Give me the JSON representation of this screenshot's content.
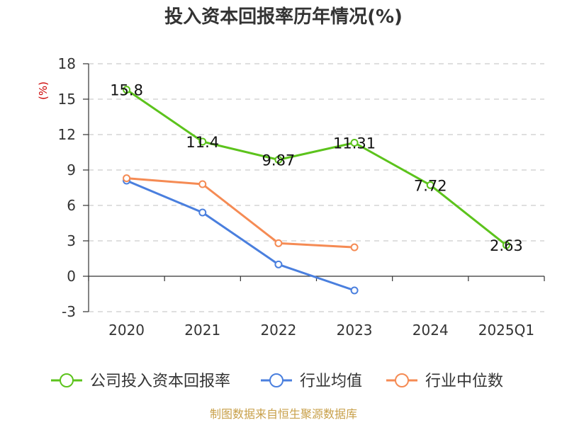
{
  "chart_data": {
    "type": "line",
    "title": "投入资本回报率历年情况(%)",
    "ylabel": "(%)",
    "xlabel": "",
    "categories": [
      "2020",
      "2021",
      "2022",
      "2023",
      "2024",
      "2025Q1"
    ],
    "yticks": [
      18,
      15,
      12,
      9,
      6,
      3,
      0,
      -3
    ],
    "ylim": [
      -3,
      18
    ],
    "grid": true,
    "legend_position": "bottom",
    "series": [
      {
        "name": "公司投入资本回报率",
        "color": "#5cc31c",
        "values": [
          15.8,
          11.4,
          9.87,
          11.31,
          7.72,
          2.63
        ],
        "labels": [
          "15.8",
          "11.4",
          "9.87",
          "11.31",
          "7.72",
          "2.63"
        ]
      },
      {
        "name": "行业均值",
        "color": "#4a7fde",
        "values": [
          8.1,
          5.4,
          1.0,
          -1.2,
          null,
          null
        ]
      },
      {
        "name": "行业中位数",
        "color": "#f58b54",
        "values": [
          8.3,
          7.8,
          2.8,
          2.45,
          null,
          null
        ]
      }
    ]
  },
  "source": "制图数据来自恒生聚源数据库"
}
